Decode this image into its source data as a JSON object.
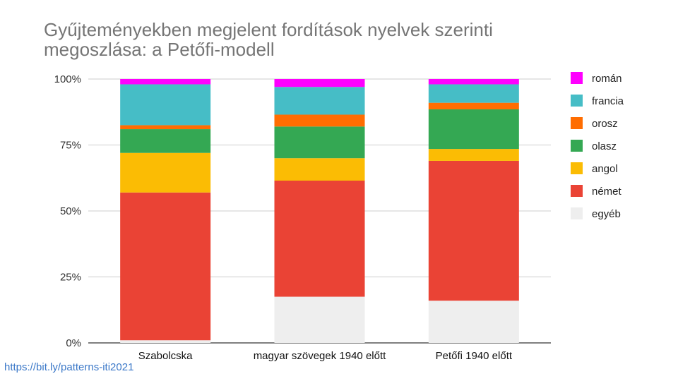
{
  "chart_data": {
    "type": "bar",
    "stacked": true,
    "title_lines": [
      "Gyűjteményekben megjelent fordítások nyelvek szerinti",
      "megoszlása: a Petőfi-modell"
    ],
    "xlabel": "",
    "ylabel": "",
    "ylim": [
      0,
      100
    ],
    "y_ticks": [
      0,
      25,
      50,
      75,
      100
    ],
    "y_tick_labels": [
      "0%",
      "25%",
      "50%",
      "75%",
      "100%"
    ],
    "grid": true,
    "legend_position": "right",
    "categories": [
      "Szabolcska",
      "magyar szövegek 1940 előtt",
      "Petőfi 1940 előtt"
    ],
    "series": [
      {
        "name": "egyéb",
        "color": "#eeeeee",
        "values": [
          1,
          17.5,
          16
        ]
      },
      {
        "name": "német",
        "color": "#ea4335",
        "values": [
          56,
          44,
          53
        ]
      },
      {
        "name": "angol",
        "color": "#fbbc04",
        "values": [
          15,
          8.5,
          4.5
        ]
      },
      {
        "name": "olasz",
        "color": "#34a853",
        "values": [
          9,
          12,
          15
        ]
      },
      {
        "name": "orosz",
        "color": "#ff6d01",
        "values": [
          1.5,
          4.5,
          2.5
        ]
      },
      {
        "name": "francia",
        "color": "#46bdc6",
        "values": [
          15.5,
          10.5,
          7
        ]
      },
      {
        "name": "román",
        "color": "#ff00ff",
        "values": [
          2,
          3,
          2
        ]
      }
    ]
  },
  "footer": {
    "link_text": "https://bit.ly/patterns-iti2021"
  }
}
